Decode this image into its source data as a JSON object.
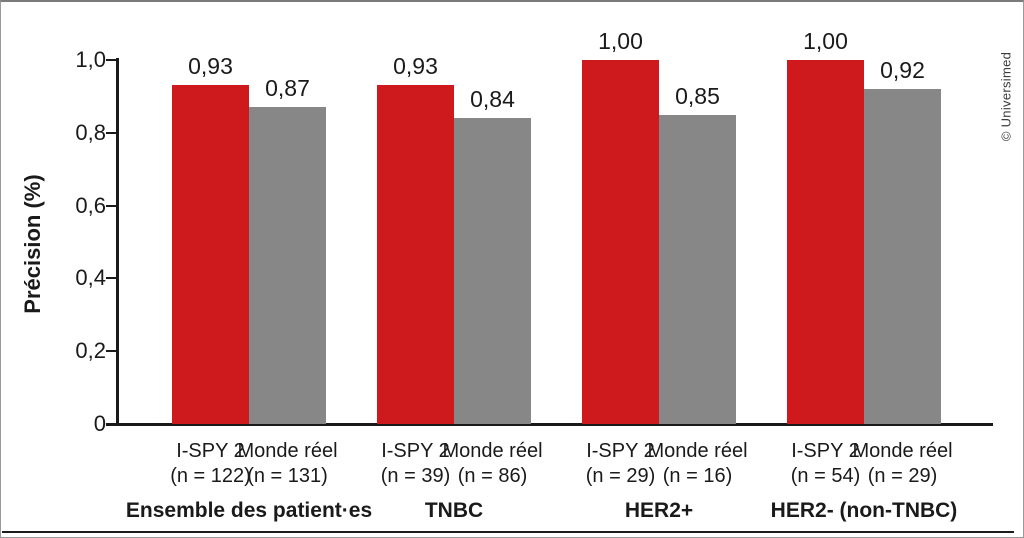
{
  "credit": "© Universimed",
  "colors": {
    "ispy_red": "#ce1a1c",
    "real_world_gray": "#878787",
    "axis_black": "#1a1a1a",
    "frame_gray": "#9a9a9a"
  },
  "chart_data": {
    "type": "bar",
    "title": "",
    "ylabel": "Précision (%)",
    "xlabel": "",
    "ylim": [
      0,
      1.0
    ],
    "grid": false,
    "legend": "none (series labeled under each bar)",
    "yticks": [
      {
        "value": 0,
        "label": "0"
      },
      {
        "value": 0.2,
        "label": "0,2"
      },
      {
        "value": 0.4,
        "label": "0,4"
      },
      {
        "value": 0.6,
        "label": "0,6"
      },
      {
        "value": 0.8,
        "label": "0,8"
      },
      {
        "value": 1.0,
        "label": "1,0"
      }
    ],
    "series": [
      {
        "name": "I-SPY 2",
        "color": "#ce1a1c"
      },
      {
        "name": "Monde réel",
        "color": "#878787"
      }
    ],
    "groups": [
      {
        "label": "Ensemble des patient·es",
        "bars": [
          {
            "series": "I-SPY 2",
            "n_label": "(n = 122)",
            "value": 0.93,
            "value_label": "0,93"
          },
          {
            "series": "Monde réel",
            "n_label": "(n = 131)",
            "value": 0.87,
            "value_label": "0,87"
          }
        ]
      },
      {
        "label": "TNBC",
        "bars": [
          {
            "series": "I-SPY 2",
            "n_label": "(n = 39)",
            "value": 0.93,
            "value_label": "0,93"
          },
          {
            "series": "Monde réel",
            "n_label": "(n = 86)",
            "value": 0.84,
            "value_label": "0,84"
          }
        ]
      },
      {
        "label": "HER2+",
        "bars": [
          {
            "series": "I-SPY 2",
            "n_label": "(n = 29)",
            "value": 1.0,
            "value_label": "1,00"
          },
          {
            "series": "Monde réel",
            "n_label": "(n = 16)",
            "value": 0.85,
            "value_label": "0,85"
          }
        ]
      },
      {
        "label": "HER2- (non-TNBC)",
        "bars": [
          {
            "series": "I-SPY 2",
            "n_label": "(n = 54)",
            "value": 1.0,
            "value_label": "1,00"
          },
          {
            "series": "Monde réel",
            "n_label": "(n = 29)",
            "value": 0.92,
            "value_label": "0,92"
          }
        ]
      }
    ]
  }
}
